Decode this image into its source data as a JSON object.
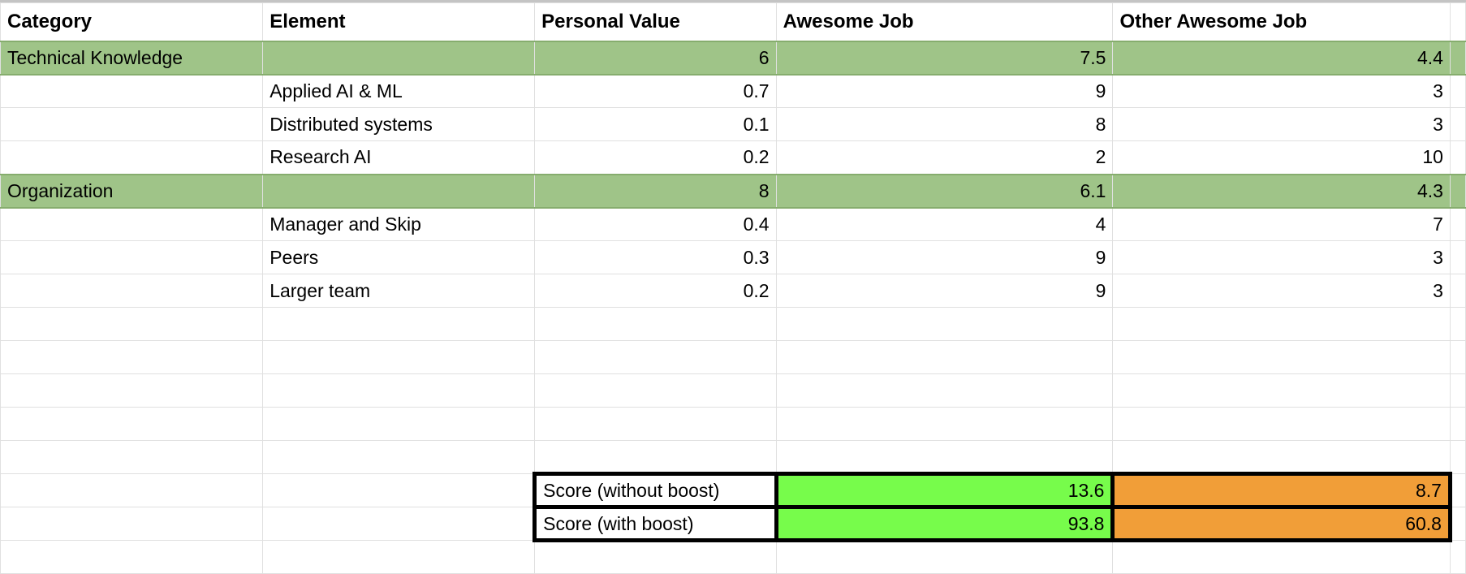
{
  "headers": [
    "Category",
    "Element",
    "Personal Value",
    "Awesome Job",
    "Other Awesome Job"
  ],
  "rows": [
    {
      "type": "category",
      "category": "Technical Knowledge",
      "element": "",
      "personal": "6",
      "awesome": "7.5",
      "other": "4.4"
    },
    {
      "type": "element",
      "category": "",
      "element": "Applied AI & ML",
      "personal": "0.7",
      "awesome": "9",
      "other": "3"
    },
    {
      "type": "element",
      "category": "",
      "element": "Distributed systems",
      "personal": "0.1",
      "awesome": "8",
      "other": "3"
    },
    {
      "type": "element",
      "category": "",
      "element": "Research AI",
      "personal": "0.2",
      "awesome": "2",
      "other": "10"
    },
    {
      "type": "category",
      "category": "Organization",
      "element": "",
      "personal": "8",
      "awesome": "6.1",
      "other": "4.3"
    },
    {
      "type": "element",
      "category": "",
      "element": "Manager and Skip",
      "personal": "0.4",
      "awesome": "4",
      "other": "7"
    },
    {
      "type": "element",
      "category": "",
      "element": "Peers",
      "personal": "0.3",
      "awesome": "9",
      "other": "3"
    },
    {
      "type": "element",
      "category": "",
      "element": "Larger team",
      "personal": "0.2",
      "awesome": "9",
      "other": "3"
    }
  ],
  "scores": [
    {
      "label": "Score (without boost)",
      "awesome": "13.6",
      "other": "8.7"
    },
    {
      "label": "Score (with boost)",
      "awesome": "93.8",
      "other": "60.8"
    }
  ],
  "colors": {
    "category_fill": "#9fc488",
    "awesome_score_fill": "#77fc4b",
    "other_score_fill": "#f19e38"
  }
}
